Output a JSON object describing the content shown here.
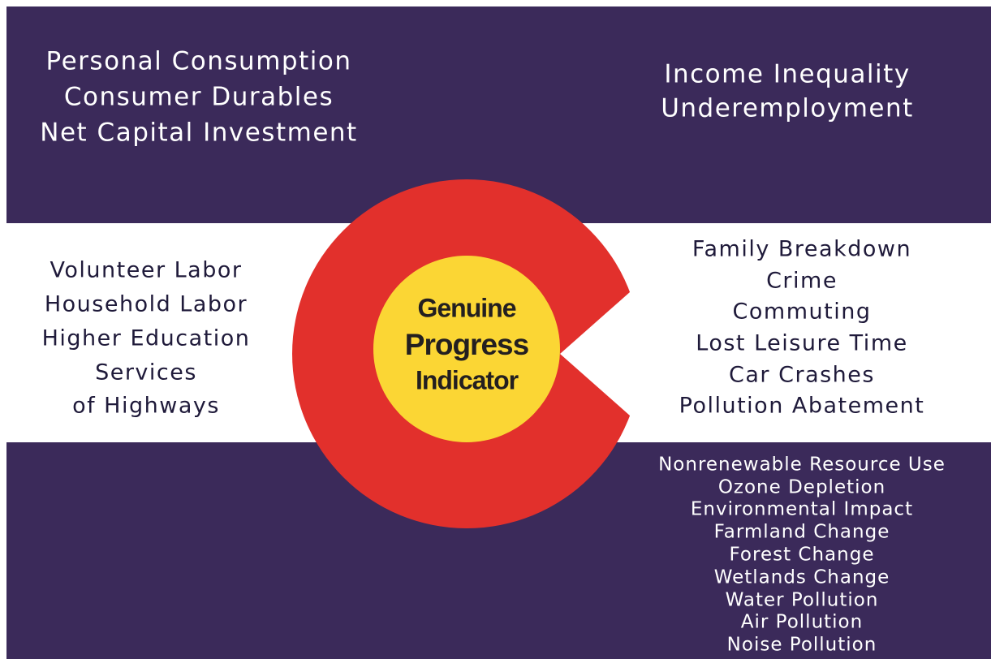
{
  "top_left": {
    "lines": [
      "Personal Consumption",
      "Consumer Durables",
      "Net Capital Investment"
    ]
  },
  "top_right": {
    "lines": [
      "Income Inequality",
      "Underemployment"
    ]
  },
  "middle_left": {
    "lines": [
      "Volunteer Labor",
      "Household Labor",
      "Higher Education",
      "Services",
      "of Highways"
    ]
  },
  "middle_right": {
    "lines": [
      "Family Breakdown",
      "Crime",
      "Commuting",
      "Lost Leisure Time",
      "Car Crashes",
      "Pollution Abatement"
    ]
  },
  "bottom_right": {
    "lines": [
      "Nonrenewable Resource Use",
      "Ozone Depletion",
      "Environmental Impact",
      "Farmland Change",
      "Forest Change",
      "Wetlands Change",
      "Water Pollution",
      "Air Pollution",
      "Noise Pollution"
    ]
  },
  "center": {
    "lines": [
      "Genuine",
      "Progress",
      "Indicator"
    ]
  }
}
